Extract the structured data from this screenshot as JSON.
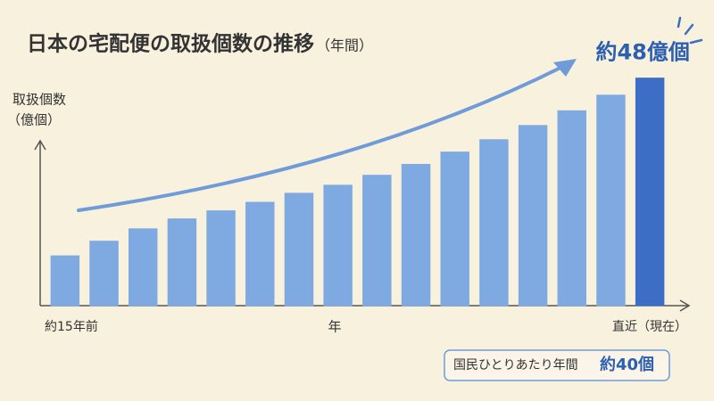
{
  "chart_data": {
    "type": "bar",
    "title": "日本の宅配便の取扱個数の推移",
    "title_note": "（年間）",
    "ylabel": "取扱個数",
    "ylabel_unit": "（億個）",
    "xlabel": "年",
    "categories": [
      "約15年前",
      null,
      null,
      null,
      null,
      null,
      null,
      null,
      null,
      null,
      null,
      null,
      null,
      null,
      null,
      "直近（現在）"
    ],
    "values": [
      10.5,
      13.6,
      16.2,
      18.3,
      20.0,
      21.8,
      23.7,
      25.4,
      27.5,
      29.8,
      32.4,
      35.0,
      38.0,
      41.1,
      44.4,
      48
    ],
    "value_labels": [
      null,
      null,
      null,
      null,
      null,
      null,
      null,
      null,
      null,
      null,
      null,
      null,
      null,
      null,
      null,
      "約48億個"
    ],
    "colors": [
      "#7ea9e1",
      "#7ea9e1",
      "#7ea9e1",
      "#7ea9e1",
      "#7ea9e1",
      "#7ea9e1",
      "#7ea9e1",
      "#7ea9e1",
      "#7ea9e1",
      "#7ea9e1",
      "#7ea9e1",
      "#7ea9e1",
      "#7ea9e1",
      "#7ea9e1",
      "#7ea9e1",
      "#3b6ec4"
    ],
    "ylim": [
      0,
      50
    ],
    "grid": false,
    "annotation": {
      "label": "国民ひとりあたり年間",
      "value": "約40個"
    }
  }
}
